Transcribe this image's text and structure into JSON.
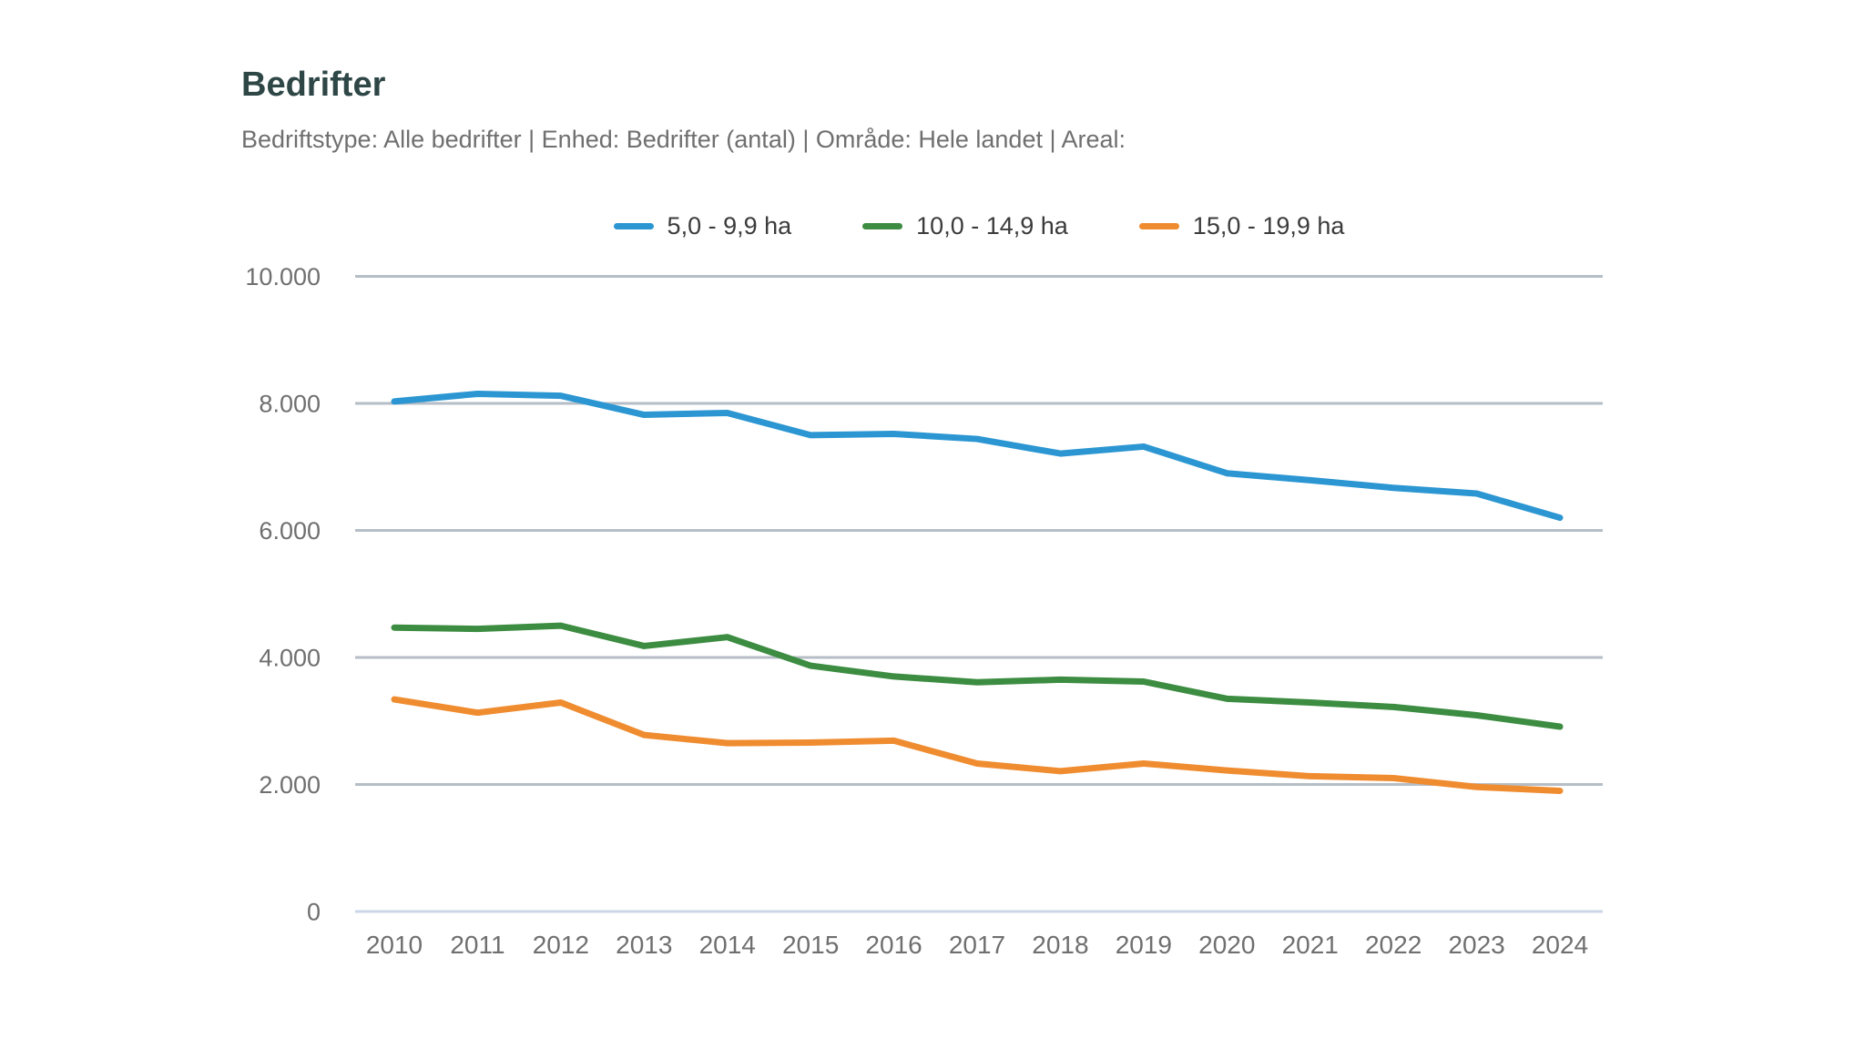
{
  "header": {
    "title": "Bedrifter",
    "subtitle": "Bedriftstype: Alle bedrifter | Enhed: Bedrifter (antal) | Område: Hele landet | Areal:"
  },
  "chart_data": {
    "type": "line",
    "title": "Bedrifter",
    "xlabel": "",
    "ylabel": "Bedrifter (antal)",
    "x": [
      2010,
      2011,
      2012,
      2013,
      2014,
      2015,
      2016,
      2017,
      2018,
      2019,
      2020,
      2021,
      2022,
      2023,
      2024
    ],
    "series": [
      {
        "name": "5,0 - 9,9 ha",
        "color": "#2B96D2",
        "values": [
          8030,
          8150,
          8120,
          7820,
          7850,
          7500,
          7520,
          7440,
          7210,
          7320,
          6900,
          6790,
          6670,
          6580,
          6200
        ]
      },
      {
        "name": "10,0 - 14,9 ha",
        "color": "#3C8C41",
        "values": [
          4470,
          4450,
          4500,
          4180,
          4320,
          3870,
          3700,
          3610,
          3650,
          3620,
          3350,
          3290,
          3220,
          3090,
          2910
        ]
      },
      {
        "name": "15,0 - 19,9 ha",
        "color": "#F08C30",
        "values": [
          3340,
          3130,
          3290,
          2780,
          2650,
          2660,
          2690,
          2330,
          2210,
          2330,
          2220,
          2130,
          2100,
          1960,
          1900
        ]
      }
    ],
    "ylim": [
      0,
      10000
    ],
    "ytick_step": 2000,
    "ytick_labels": [
      "0",
      "2.000",
      "4.000",
      "6.000",
      "8.000",
      "10.000"
    ],
    "grid": true,
    "legend_position": "top-center",
    "colors": {
      "gridline": "#B5BEC6",
      "zero_gridline": "#CBD6E8",
      "title": "#2E4746",
      "subtitle": "#6F6F6F",
      "tick_label": "#6F6F6F",
      "legend_label": "#3B3B3B",
      "background": "#FFFFFF"
    }
  }
}
